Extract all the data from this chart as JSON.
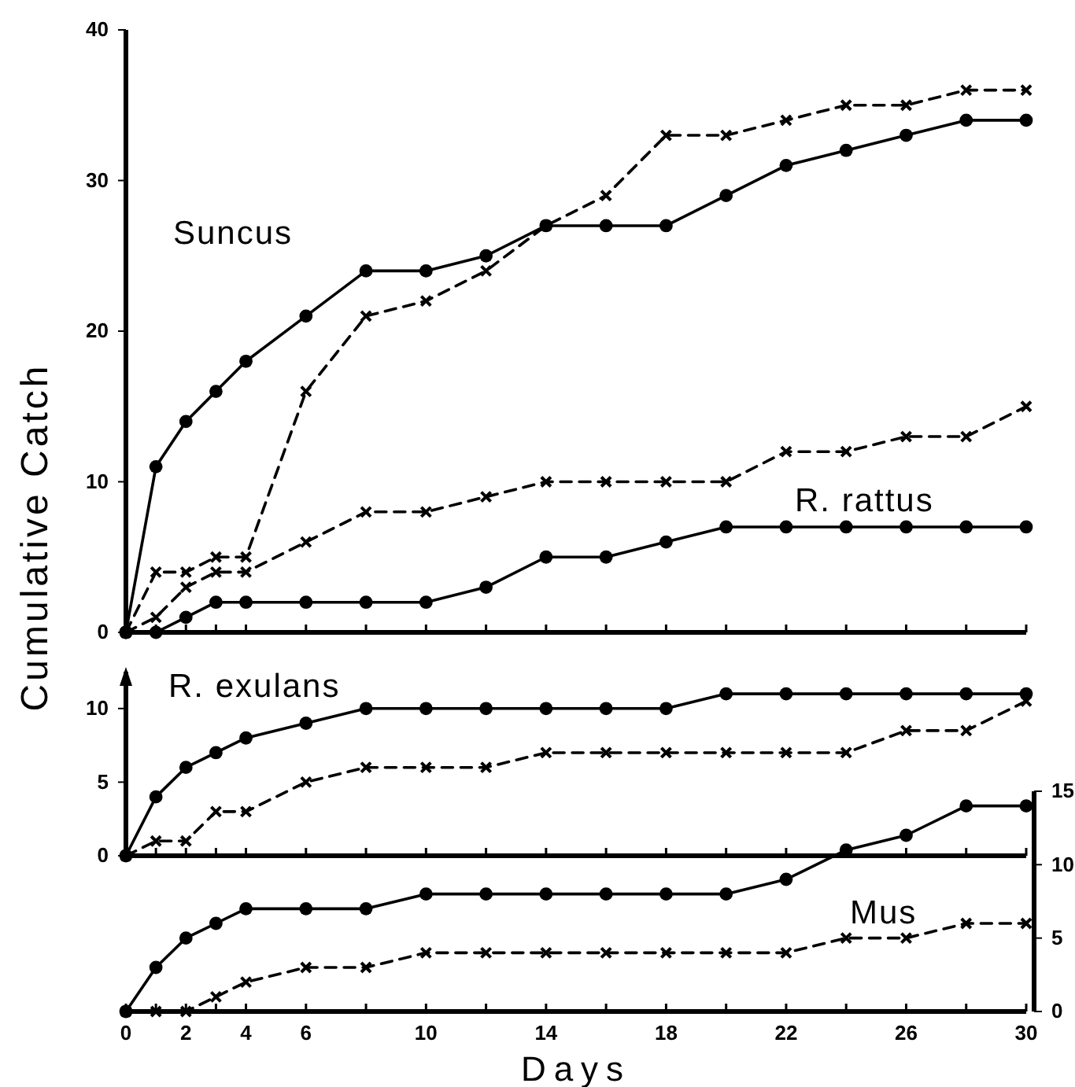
{
  "chart_data": [
    {
      "type": "line",
      "ylabel": "Cumulative Catch",
      "x": [
        0,
        1,
        2,
        3,
        4,
        6,
        8,
        10,
        12,
        14,
        16,
        18,
        20,
        22,
        24,
        26,
        28,
        30
      ],
      "xlim": [
        0,
        30
      ],
      "ylim": [
        0,
        40
      ],
      "yticks": [
        0,
        10,
        20,
        30,
        40
      ],
      "xticks": [
        0,
        {
          "value": 1,
          "label": null
        },
        2,
        {
          "value": 3,
          "label": null
        },
        4,
        6,
        {
          "value": 8,
          "label": null
        },
        10,
        {
          "value": 12,
          "label": null
        },
        14,
        {
          "value": 16,
          "label": null
        },
        18,
        {
          "value": 20,
          "label": null
        },
        22,
        {
          "value": 24,
          "label": null
        },
        26,
        {
          "value": 28,
          "label": null
        },
        30
      ],
      "tick_labels": "y",
      "series": [
        {
          "color": "#000000",
          "marker": "circle",
          "line_style": "solid",
          "values": [
            0,
            11,
            14,
            16,
            18,
            21,
            24,
            24,
            25,
            27,
            27,
            27,
            29,
            31,
            32,
            33,
            34,
            34
          ]
        },
        {
          "color": "#000000",
          "marker": "cross",
          "line_style": "dashed",
          "values": [
            0,
            4,
            4,
            5,
            5,
            16,
            21,
            22,
            24,
            27,
            29,
            33,
            33,
            34,
            35,
            35,
            36,
            36
          ]
        },
        {
          "color": "#000000",
          "marker": "cross",
          "line_style": "dashed",
          "values": [
            0,
            1,
            3,
            4,
            4,
            6,
            8,
            8,
            9,
            10,
            10,
            10,
            10,
            12,
            12,
            13,
            13,
            15
          ]
        },
        {
          "color": "#000000",
          "marker": "circle",
          "line_style": "solid",
          "values": [
            0,
            0,
            1,
            2,
            2,
            2,
            2,
            2,
            3,
            5,
            5,
            6,
            7,
            7,
            7,
            7,
            7,
            7
          ]
        }
      ],
      "annotations": [
        "Suncus",
        "R. rattus"
      ]
    },
    {
      "type": "line",
      "x": [
        0,
        1,
        2,
        3,
        4,
        6,
        8,
        10,
        12,
        14,
        16,
        18,
        20,
        22,
        24,
        26,
        28,
        30
      ],
      "xlim": [
        0,
        30
      ],
      "ylim": [
        0,
        12.5
      ],
      "yticks": [
        0,
        5,
        10
      ],
      "xticks": [
        0,
        {
          "value": 1,
          "label": null
        },
        2,
        {
          "value": 3,
          "label": null
        },
        4,
        6,
        {
          "value": 8,
          "label": null
        },
        10,
        {
          "value": 12,
          "label": null
        },
        14,
        {
          "value": 16,
          "label": null
        },
        18,
        {
          "value": 20,
          "label": null
        },
        22,
        {
          "value": 24,
          "label": null
        },
        26,
        {
          "value": 28,
          "label": null
        },
        30
      ],
      "tick_labels": "y",
      "series": [
        {
          "color": "#000000",
          "marker": "circle",
          "line_style": "solid",
          "values": [
            0,
            4,
            6,
            7,
            8,
            9,
            10,
            10,
            10,
            10,
            10,
            10,
            11,
            11,
            11,
            11,
            11,
            11
          ]
        },
        {
          "color": "#000000",
          "marker": "cross",
          "line_style": "dashed",
          "values": [
            0,
            1,
            1,
            3,
            3,
            5,
            6,
            6,
            6,
            7,
            7,
            7,
            7,
            7,
            7,
            8.5,
            8.5,
            10.5
          ]
        }
      ],
      "annotations": [
        "R. exulans"
      ]
    },
    {
      "type": "line",
      "xlabel": "Days",
      "x": [
        0,
        1,
        2,
        3,
        4,
        6,
        8,
        10,
        12,
        14,
        16,
        18,
        20,
        22,
        24,
        26,
        28,
        30
      ],
      "xlim": [
        0,
        30
      ],
      "ylim": [
        0,
        15
      ],
      "yticks": [
        0,
        5,
        10,
        15
      ],
      "xticks": [
        0,
        {
          "value": 1,
          "label": null
        },
        2,
        {
          "value": 3,
          "label": null
        },
        4,
        6,
        {
          "value": 8,
          "label": null
        },
        10,
        {
          "value": 12,
          "label": null
        },
        14,
        {
          "value": 16,
          "label": null
        },
        18,
        {
          "value": 20,
          "label": null
        },
        22,
        {
          "value": 24,
          "label": null
        },
        26,
        {
          "value": 28,
          "label": null
        },
        30
      ],
      "series": [
        {
          "color": "#000000",
          "marker": "circle",
          "line_style": "solid",
          "values": [
            0,
            3,
            5,
            6,
            7,
            7,
            7,
            8,
            8,
            8,
            8,
            8,
            8,
            9,
            11,
            12,
            14,
            14
          ]
        },
        {
          "color": "#000000",
          "marker": "cross",
          "line_style": "dashed",
          "values": [
            0,
            0,
            0,
            1,
            2,
            3,
            3,
            4,
            4,
            4,
            4,
            4,
            4,
            4,
            5,
            5,
            6,
            6
          ]
        }
      ],
      "annotations": [
        "Mus"
      ]
    }
  ]
}
